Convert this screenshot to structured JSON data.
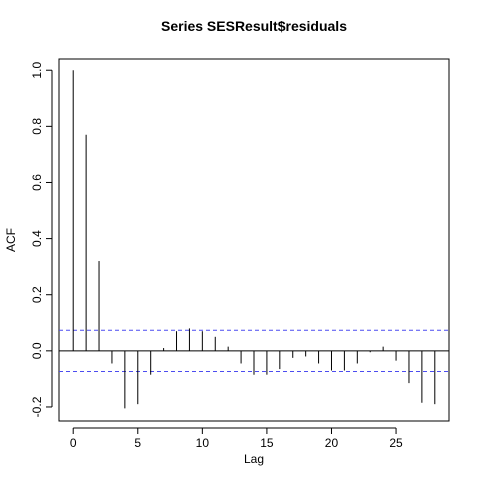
{
  "chart_data": {
    "type": "bar",
    "title": "Series  SESResult$residuals",
    "xlabel": "Lag",
    "ylabel": "ACF",
    "xlim": [
      -1.1,
      29.1
    ],
    "ylim": [
      -0.25,
      1.04
    ],
    "x_ticks": [
      0,
      5,
      10,
      15,
      20,
      25
    ],
    "y_ticks": [
      -0.2,
      0.0,
      0.2,
      0.4,
      0.6,
      0.8,
      1.0
    ],
    "y_tick_labels": [
      "-0.2",
      "0.0",
      "0.2",
      "0.4",
      "0.6",
      "0.8",
      "1.0"
    ],
    "lags": [
      0,
      1,
      2,
      3,
      4,
      5,
      6,
      7,
      8,
      9,
      10,
      11,
      12,
      13,
      14,
      15,
      16,
      17,
      18,
      19,
      20,
      21,
      22,
      23,
      24,
      25,
      26,
      27,
      28
    ],
    "values": [
      1.0,
      0.77,
      0.32,
      -0.045,
      -0.205,
      -0.19,
      -0.085,
      0.01,
      0.07,
      0.08,
      0.07,
      0.05,
      0.015,
      -0.045,
      -0.085,
      -0.085,
      -0.065,
      -0.025,
      -0.02,
      -0.045,
      -0.07,
      -0.07,
      -0.045,
      -0.005,
      0.015,
      -0.035,
      -0.115,
      -0.185,
      -0.19
    ],
    "confidence_bounds": [
      0.0735,
      -0.0735
    ],
    "confidence_line_color": "#4c4cf0",
    "grid": false,
    "legend": "none"
  }
}
